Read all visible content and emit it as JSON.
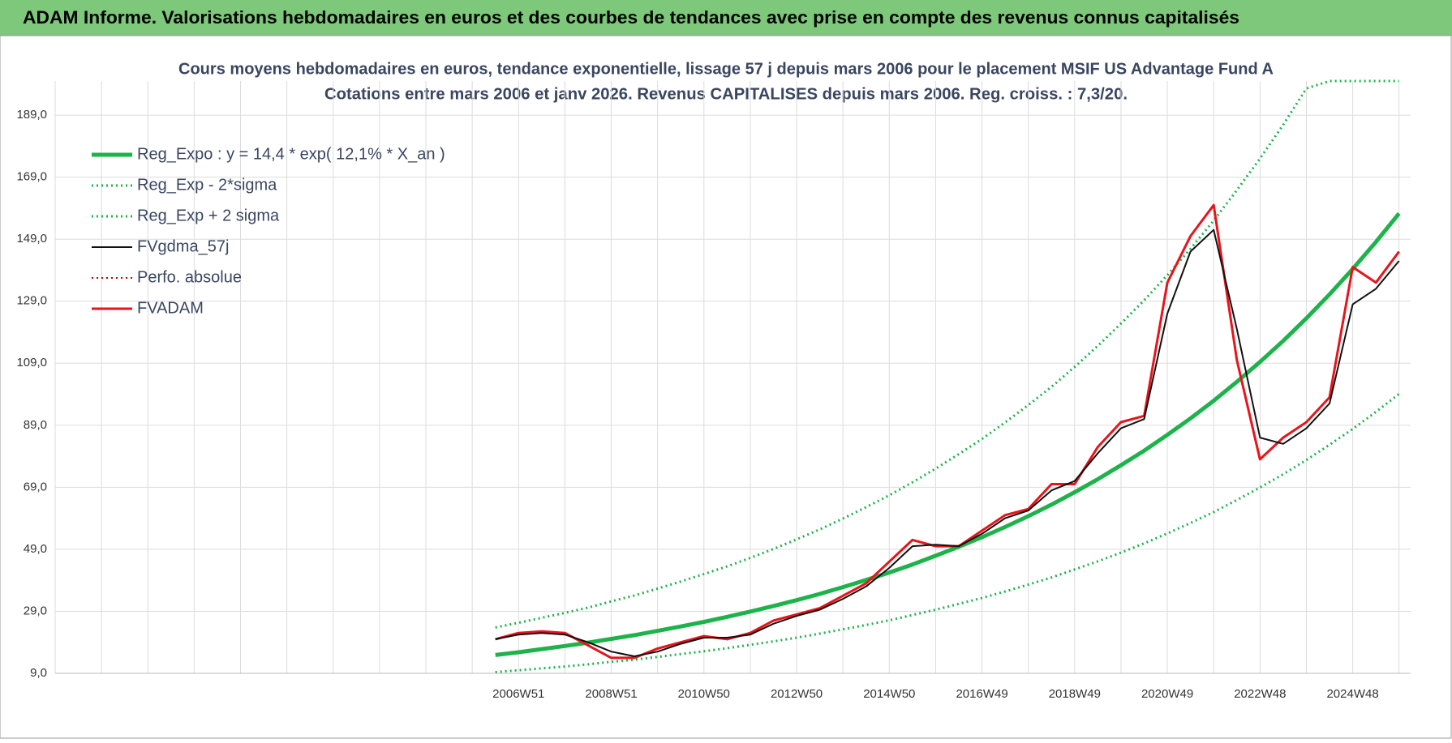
{
  "header": {
    "title": "ADAM Informe. Valorisations hebdomadaires en euros et des courbes de tendances avec prise en compte des revenus connus capitalisés"
  },
  "chart_data": {
    "type": "line",
    "title": "Cours moyens hebdomadaires en euros, tendance exponentielle, lissage 57 j depuis mars 2006 pour le placement MSIF US Advantage Fund A",
    "subtitle": "Cotations entre mars 2006 et janv 2026. Revenus CAPITALISES depuis mars 2006. Reg. croiss. : 7,3/20.",
    "categories": [
      null,
      null,
      null,
      null,
      null,
      null,
      null,
      null,
      null,
      null,
      null,
      null,
      null,
      null,
      null,
      null,
      null,
      null,
      null,
      null,
      "2006W51",
      null,
      null,
      null,
      "2008W51",
      null,
      null,
      null,
      "2010W50",
      null,
      null,
      null,
      "2012W50",
      null,
      null,
      null,
      "2014W50",
      null,
      null,
      null,
      "2016W49",
      null,
      null,
      null,
      "2018W49",
      null,
      null,
      null,
      "2020W49",
      null,
      null,
      null,
      "2022W48",
      null,
      null,
      null,
      "2024W48",
      null,
      null
    ],
    "ylim": [
      9,
      200
    ],
    "yticks": [
      {
        "value": 9,
        "label": "9,0"
      },
      {
        "value": 29,
        "label": "29,0"
      },
      {
        "value": 49,
        "label": "49,0"
      },
      {
        "value": 69,
        "label": "69,0"
      },
      {
        "value": 89,
        "label": "89,0"
      },
      {
        "value": 109,
        "label": "109,0"
      },
      {
        "value": 129,
        "label": "129,0"
      },
      {
        "value": 149,
        "label": "149,0"
      },
      {
        "value": 169,
        "label": "169,0"
      },
      {
        "value": 189,
        "label": "189,0"
      }
    ],
    "grid": true,
    "legend": "top-left",
    "series": [
      {
        "name": "Reg_Expo : y = 14,4 * exp( 12,1% *  X_an )",
        "color": "#1db34a",
        "style": "solid",
        "width": 5,
        "values": [
          null,
          null,
          null,
          null,
          null,
          null,
          null,
          null,
          null,
          null,
          null,
          null,
          null,
          null,
          null,
          null,
          null,
          null,
          null,
          14.9,
          15.8,
          16.8,
          17.8,
          18.9,
          20.1,
          21.3,
          22.7,
          24.1,
          25.6,
          27.2,
          28.9,
          30.7,
          32.6,
          34.6,
          36.8,
          39.1,
          41.5,
          44.1,
          46.9,
          49.8,
          52.9,
          56.2,
          59.7,
          63.4,
          67.4,
          71.6,
          76.1,
          80.8,
          85.9,
          91.2,
          96.9,
          103.0,
          109.4,
          116.2,
          123.5,
          131.2,
          139.4,
          148.1,
          157.3
        ]
      },
      {
        "name": "Reg_Exp - 2*sigma",
        "color": "#1db34a",
        "style": "dotted",
        "width": 3,
        "values": [
          null,
          null,
          null,
          null,
          null,
          null,
          null,
          null,
          null,
          null,
          null,
          null,
          null,
          null,
          null,
          null,
          null,
          null,
          null,
          9.4,
          10.0,
          10.6,
          11.2,
          11.9,
          12.7,
          13.4,
          14.3,
          15.2,
          16.1,
          17.1,
          18.2,
          19.3,
          20.5,
          21.8,
          23.2,
          24.6,
          26.1,
          27.8,
          29.5,
          31.4,
          33.3,
          35.4,
          37.6,
          39.9,
          42.5,
          45.1,
          47.9,
          50.9,
          54.1,
          57.5,
          61.0,
          64.9,
          68.9,
          73.2,
          77.8,
          82.7,
          87.8,
          93.3,
          99.1
        ]
      },
      {
        "name": "Reg_Exp + 2 sigma",
        "color": "#1db34a",
        "style": "dotted",
        "width": 3,
        "values": [
          null,
          null,
          null,
          null,
          null,
          null,
          null,
          null,
          null,
          null,
          null,
          null,
          null,
          null,
          null,
          null,
          null,
          null,
          null,
          23.8,
          25.3,
          26.9,
          28.5,
          30.2,
          32.2,
          34.1,
          36.3,
          38.6,
          41.0,
          43.5,
          46.2,
          49.1,
          52.2,
          55.4,
          58.9,
          62.6,
          66.4,
          70.6,
          75.0,
          79.7,
          84.6,
          89.9,
          95.5,
          101.4,
          107.8,
          114.6,
          121.8,
          129.3,
          137.4,
          145.9,
          155.0,
          164.8,
          175.0,
          185.9,
          197.6,
          200,
          200,
          200,
          200
        ]
      },
      {
        "name": "FVgdma_57j",
        "color": "#111111",
        "style": "solid",
        "width": 2,
        "values": [
          null,
          null,
          null,
          null,
          null,
          null,
          null,
          null,
          null,
          null,
          null,
          null,
          null,
          null,
          null,
          null,
          null,
          null,
          null,
          20,
          21.5,
          22,
          21.5,
          19,
          16,
          14.5,
          16,
          18.5,
          20.5,
          20.5,
          21.5,
          25,
          27.5,
          29.5,
          33,
          37,
          43,
          50,
          50.5,
          50,
          54,
          59,
          61.5,
          68,
          71,
          80,
          88,
          91,
          125,
          145,
          152,
          120,
          85,
          83,
          88,
          96,
          128,
          133,
          142
        ]
      },
      {
        "name": "Perfo. absolue",
        "color": "#c00000",
        "style": "dotted",
        "width": 2,
        "values": [
          null,
          null,
          null,
          null,
          null,
          null,
          null,
          null,
          null,
          null,
          null,
          null,
          null,
          null,
          null,
          null,
          null,
          null,
          null,
          20,
          22,
          22.5,
          22,
          18,
          14,
          14,
          17,
          19,
          21,
          20,
          22,
          26,
          28,
          30,
          34,
          38,
          45,
          52,
          50,
          50,
          55,
          60,
          62,
          70,
          70,
          82,
          90,
          92,
          135,
          150,
          160,
          110,
          78,
          85,
          90,
          98,
          140,
          135,
          145
        ]
      },
      {
        "name": "FVADAM",
        "color": "#e8141b",
        "style": "solid",
        "width": 3,
        "values": [
          null,
          null,
          null,
          null,
          null,
          null,
          null,
          null,
          null,
          null,
          null,
          null,
          null,
          null,
          null,
          null,
          null,
          null,
          null,
          20,
          22,
          22.5,
          22,
          18,
          14,
          14,
          17,
          19,
          21,
          20,
          22,
          26,
          28,
          30,
          34,
          38,
          45,
          52,
          50,
          50,
          55,
          60,
          62,
          70,
          70,
          82,
          90,
          92,
          135,
          150,
          160,
          110,
          78,
          85,
          90,
          98,
          140,
          135,
          145
        ]
      }
    ]
  }
}
